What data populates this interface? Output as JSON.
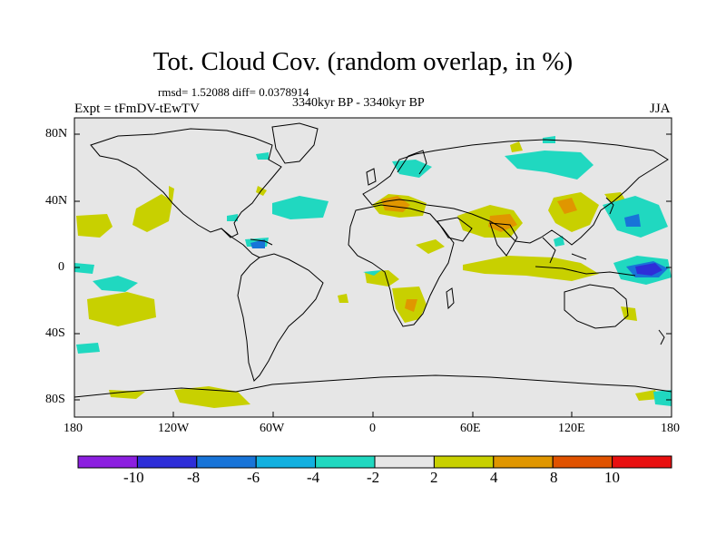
{
  "title": "Tot. Cloud Cov. (random overlap, in %)",
  "stats": "rmsd= 1.52088 diff= 0.0378914",
  "experiment": "Expt = tFmDV-tEwTV",
  "period": "3340kyr BP - 3340kyr BP",
  "season": "JJA",
  "lat_labels": [
    "80N",
    "40N",
    "0",
    "40S",
    "80S"
  ],
  "lon_labels": [
    "180",
    "120W",
    "60W",
    "0",
    "60E",
    "120E",
    "180"
  ],
  "colorbar": {
    "labels": [
      "-10",
      "-8",
      "-6",
      "-4",
      "-2",
      "2",
      "4",
      "8",
      "10"
    ],
    "colors": [
      "#8c1fe0",
      "#2e2ed8",
      "#1874d8",
      "#12b0e0",
      "#20d8c0",
      "#e6e6e6",
      "#c8d000",
      "#e09600",
      "#e05200",
      "#e81010"
    ]
  },
  "colors": {
    "ocean_bg": "#e6e6e6",
    "coast": "#000000"
  }
}
